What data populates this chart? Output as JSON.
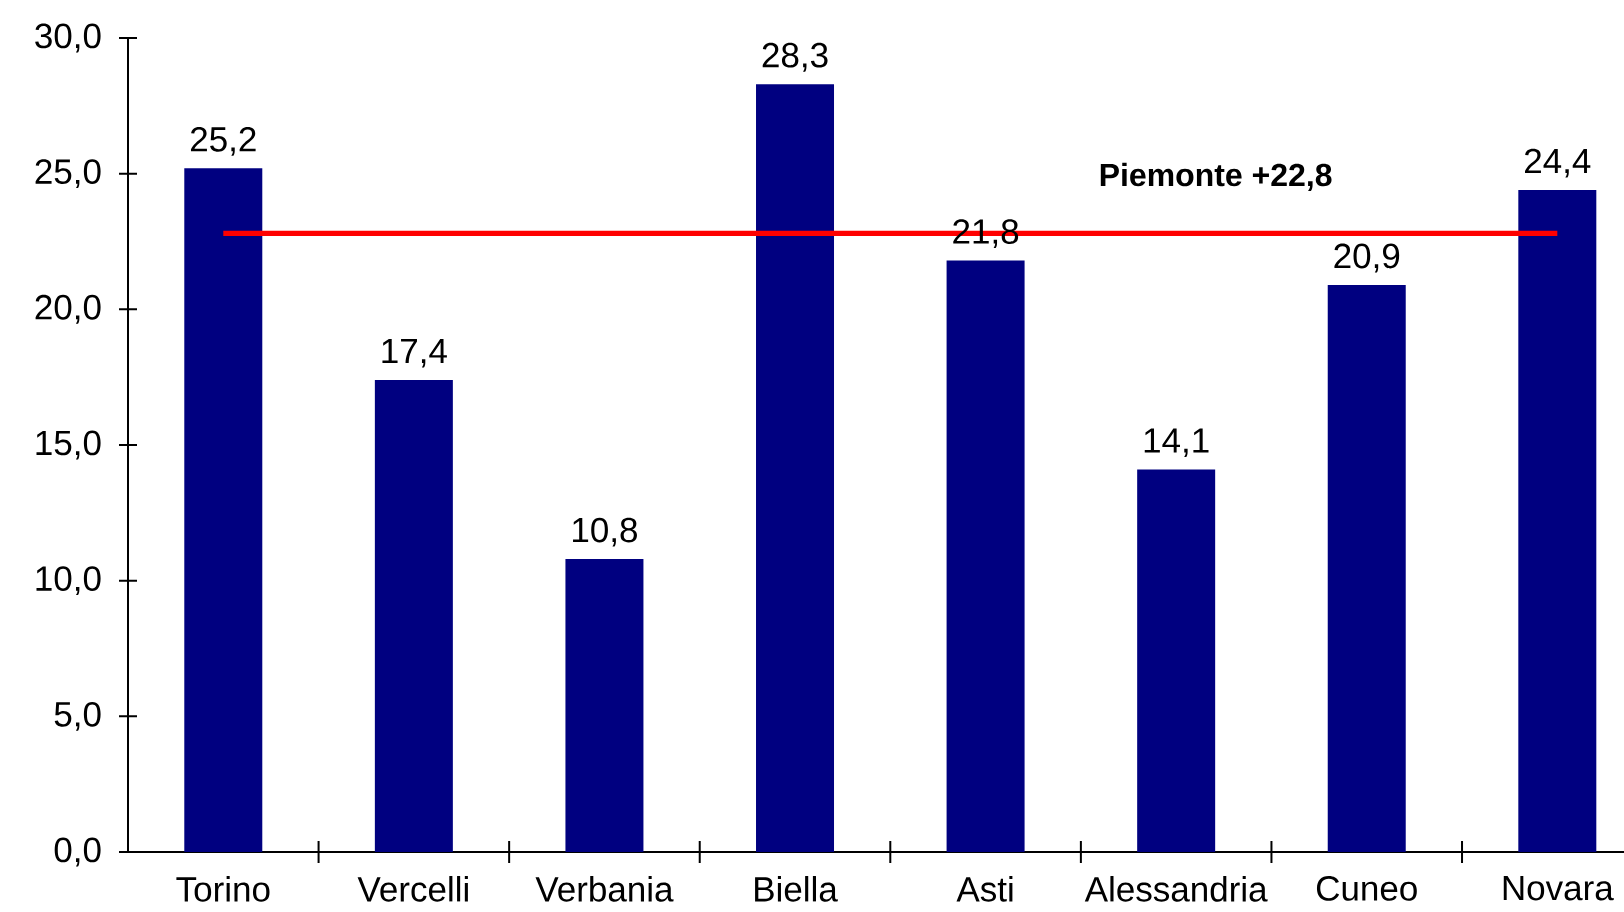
{
  "chart_data": {
    "type": "bar",
    "categories": [
      "Torino",
      "Vercelli",
      "Verbania",
      "Biella",
      "Asti",
      "Alessandria",
      "Cuneo",
      "Novara"
    ],
    "values": [
      25.2,
      17.4,
      10.8,
      28.3,
      21.8,
      14.1,
      20.9,
      24.4
    ],
    "value_labels": [
      "25,2",
      "17,4",
      "10,8",
      "28,3",
      "21,8",
      "14,1",
      "20,9",
      "24,4"
    ],
    "color": "#000080",
    "ylim": [
      0,
      30
    ],
    "yticks": [
      {
        "value": 0,
        "label": "0,0"
      },
      {
        "value": 5,
        "label": "5,0"
      },
      {
        "value": 10,
        "label": "10,0"
      },
      {
        "value": 15,
        "label": "15,0"
      },
      {
        "value": 20,
        "label": "20,0"
      },
      {
        "value": 25,
        "label": "25,0"
      },
      {
        "value": 30,
        "label": "30,0"
      }
    ],
    "ref_lines": [
      {
        "axis": "y",
        "value": 22.8,
        "label": "Piemonte +22,8",
        "color": "#ff0000"
      }
    ]
  }
}
